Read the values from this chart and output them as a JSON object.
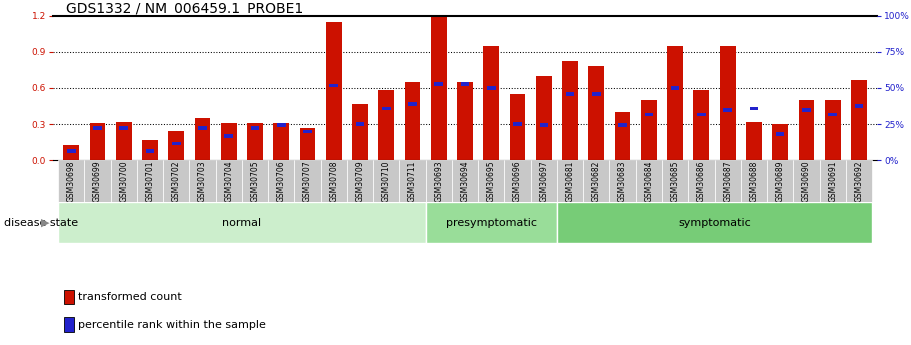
{
  "title": "GDS1332 / NM_006459.1_PROBE1",
  "categories": [
    "GSM30698",
    "GSM30699",
    "GSM30700",
    "GSM30701",
    "GSM30702",
    "GSM30703",
    "GSM30704",
    "GSM30705",
    "GSM30706",
    "GSM30707",
    "GSM30708",
    "GSM30709",
    "GSM30710",
    "GSM30711",
    "GSM30693",
    "GSM30694",
    "GSM30695",
    "GSM30696",
    "GSM30697",
    "GSM30681",
    "GSM30682",
    "GSM30683",
    "GSM30684",
    "GSM30685",
    "GSM30686",
    "GSM30687",
    "GSM30688",
    "GSM30689",
    "GSM30690",
    "GSM30691",
    "GSM30692"
  ],
  "red_values": [
    0.13,
    0.31,
    0.32,
    0.17,
    0.24,
    0.35,
    0.31,
    0.31,
    0.31,
    0.27,
    1.15,
    0.47,
    0.58,
    0.65,
    1.2,
    0.65,
    0.95,
    0.55,
    0.7,
    0.82,
    0.78,
    0.4,
    0.5,
    0.95,
    0.58,
    0.95,
    0.32,
    0.3,
    0.5,
    0.5,
    0.67
  ],
  "blue_values": [
    0.08,
    0.27,
    0.27,
    0.08,
    0.14,
    0.27,
    0.2,
    0.27,
    0.29,
    0.24,
    0.62,
    0.3,
    0.43,
    0.47,
    0.63,
    0.63,
    0.6,
    0.3,
    0.29,
    0.55,
    0.55,
    0.29,
    0.38,
    0.6,
    0.38,
    0.42,
    0.43,
    0.22,
    0.42,
    0.38,
    0.45
  ],
  "groups": [
    {
      "label": "normal",
      "start": 0,
      "end": 14,
      "color": "#cceecc"
    },
    {
      "label": "presymptomatic",
      "start": 14,
      "end": 19,
      "color": "#99dd99"
    },
    {
      "label": "symptomatic",
      "start": 19,
      "end": 31,
      "color": "#77cc77"
    }
  ],
  "ylim_left": [
    0,
    1.2
  ],
  "ylim_right": [
    0,
    100
  ],
  "yticks_left": [
    0,
    0.3,
    0.6,
    0.9,
    1.2
  ],
  "yticks_right": [
    0,
    25,
    50,
    75,
    100
  ],
  "bar_color_red": "#cc1100",
  "bar_color_blue": "#2222cc",
  "bar_width": 0.6,
  "background_color": "#ffffff",
  "title_fontsize": 10,
  "tick_fontsize": 6.5,
  "label_fontsize": 8,
  "disease_state_label": "disease state",
  "legend_items": [
    "transformed count",
    "percentile rank within the sample"
  ]
}
